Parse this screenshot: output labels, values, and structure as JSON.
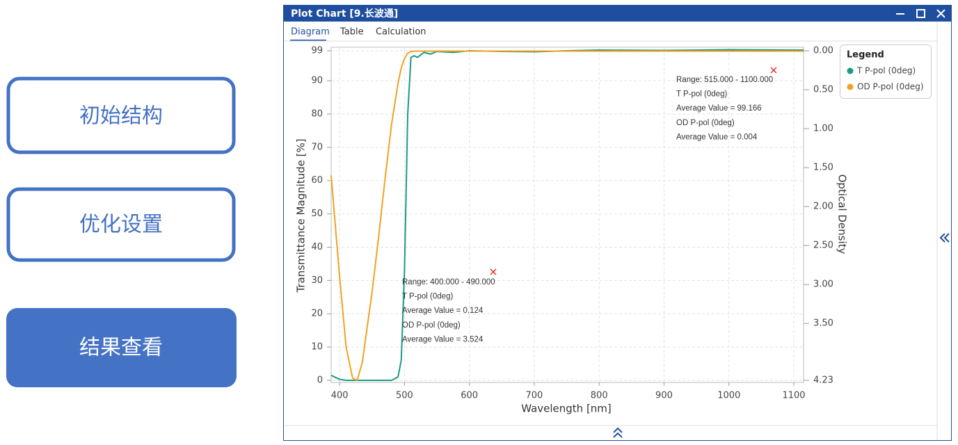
{
  "sidebar": {
    "buttons": [
      "初始结构",
      "优化设置",
      "结果查看"
    ]
  },
  "window": {
    "title": "Plot Chart [9.长波通]",
    "tabs": [
      "Diagram",
      "Table",
      "Calculation"
    ]
  },
  "chart_data": {
    "type": "line",
    "x_label": "Wavelength [nm]",
    "y_label": "Transmittance Magnitude [%]",
    "y2_label": "Optical Density",
    "x": [
      387,
      400,
      410,
      420,
      427,
      435,
      450,
      460,
      470,
      480,
      490,
      495,
      500,
      505,
      510,
      515,
      520,
      530,
      540,
      550,
      575,
      600,
      650,
      700,
      750,
      800,
      900,
      1000,
      1100,
      1115
    ],
    "xlim": [
      387,
      1115
    ],
    "xticks": [
      400,
      500,
      600,
      700,
      800,
      900,
      1000,
      1100
    ],
    "ylim": [
      0,
      99
    ],
    "yticks": [
      0,
      10,
      20,
      30,
      40,
      50,
      60,
      70,
      80,
      90,
      99
    ],
    "y2lim": [
      4.23,
      0
    ],
    "y2ticks": [
      {
        "value": 0,
        "label": "0.00"
      },
      {
        "value": 0.5,
        "label": "0.50"
      },
      {
        "value": 1,
        "label": "1.00"
      },
      {
        "value": 1.5,
        "label": "1.50"
      },
      {
        "value": 2,
        "label": "2.00"
      },
      {
        "value": 2.5,
        "label": "2.50"
      },
      {
        "value": 3,
        "label": "3.00"
      },
      {
        "value": 3.5,
        "label": "3.50"
      },
      4.23
    ],
    "grid": true,
    "legend_title": "Legend",
    "legend": "right",
    "series": [
      {
        "name": "T P-pol (0deg)",
        "color": "#1a9a82",
        "values": [
          1.5,
          0.3,
          0,
          0,
          0,
          0,
          0,
          0,
          0,
          0,
          1,
          6,
          33,
          80,
          97,
          97.5,
          97,
          98.5,
          98,
          98.8,
          98.5,
          99,
          98.8,
          98.7,
          99,
          99.2,
          99.1,
          99.3,
          99.2,
          99.2
        ]
      },
      {
        "name": "OD P-pol (0deg)",
        "color": "#f4a020",
        "axis": "y2",
        "values": [
          1.6,
          2.9,
          3.8,
          4.2,
          4.23,
          4.0,
          3.1,
          2.4,
          1.65,
          0.95,
          0.42,
          0.22,
          0.1,
          0.03,
          0.01,
          0.005,
          0.004,
          0.004,
          0.004,
          0.004,
          0.004,
          0.004,
          0.004,
          0.004,
          0.004,
          0.004,
          0.004,
          0.004,
          0.004,
          0.004
        ]
      }
    ],
    "annotations": [
      {
        "lines": [
          "Range: 400.000 - 490.000",
          "T P-pol (0deg)",
          "Average Value = 0.124",
          "OD P-pol (0deg)",
          "Average Value = 3.524"
        ]
      },
      {
        "lines": [
          "Range: 515.000 - 1100.000",
          "T P-pol (0deg)",
          "Average Value = 99.166",
          "OD P-pol (0deg)",
          "Average Value = 0.004"
        ]
      }
    ]
  }
}
